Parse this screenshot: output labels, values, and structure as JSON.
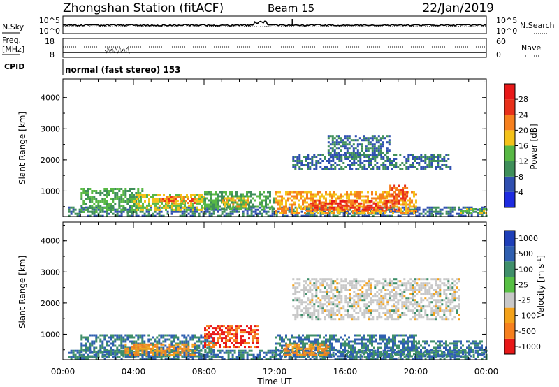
{
  "header": {
    "station": "Zhongshan Station (fitACF)",
    "beam": "Beam 15",
    "date": "22/Jan/2019"
  },
  "top_panel": {
    "left_label": "N.Sky",
    "right_label": "N.Search",
    "left_ticks": [
      "10^5",
      "10^0"
    ],
    "right_ticks": [
      "10^5",
      "10^0"
    ]
  },
  "freq_panel": {
    "left_label_1": "Freq.",
    "left_label_2": "[MHz]",
    "left_ticks": [
      "18",
      "8"
    ],
    "right_ticks": [
      "60",
      "0"
    ],
    "right_label": "Nave"
  },
  "cpid": {
    "label": "CPID",
    "text": "normal (fast stereo) 153"
  },
  "x_axis": {
    "label": "Time UT",
    "ticks": [
      "00:00",
      "04:00",
      "08:00",
      "12:00",
      "16:00",
      "20:00",
      "00:00"
    ]
  },
  "power_panel": {
    "ylabel": "Slant Range [km]",
    "yticks": [
      "4000",
      "3000",
      "2000",
      "1000"
    ],
    "colorbar_label": "Power [dB]",
    "colorbar_ticks": [
      "28",
      "24",
      "20",
      "16",
      "12",
      "8",
      "4"
    ],
    "colors": [
      "#1e2be0",
      "#2f4fb0",
      "#3f8f5a",
      "#58b845",
      "#f4c21a",
      "#f6801e",
      "#e8301a",
      "#e81818"
    ]
  },
  "velocity_panel": {
    "ylabel": "Slant Range [km]",
    "yticks": [
      "4000",
      "3000",
      "2000",
      "1000"
    ],
    "colorbar_label": "Velocity [m s^-1]",
    "colorbar_ticks": [
      "1000",
      "500",
      "100",
      "25",
      "-25",
      "-100",
      "-500",
      "-1000"
    ],
    "colors": [
      "#1e3fb8",
      "#2f5fb0",
      "#3f8f6a",
      "#58c045",
      "#c8c8c8",
      "#f4a21a",
      "#f6801e",
      "#e81818"
    ]
  },
  "chart_data": [
    {
      "type": "heatmap",
      "title": "Power",
      "xlabel": "Time UT",
      "ylabel": "Slant Range [km]",
      "xlim": [
        0,
        24
      ],
      "ylim": [
        180,
        4600
      ],
      "zlabel": "Power [dB]",
      "zlim": [
        0,
        32
      ],
      "regions": [
        {
          "t0": 0.3,
          "t1": 24.0,
          "r0": 220,
          "r1": 500,
          "value": 8
        },
        {
          "t0": 1.0,
          "t1": 4.5,
          "r0": 300,
          "r1": 1100,
          "value": 12
        },
        {
          "t0": 4.0,
          "t1": 8.0,
          "r0": 400,
          "r1": 900,
          "value": 16
        },
        {
          "t0": 5.5,
          "t1": 7.5,
          "r0": 600,
          "r1": 850,
          "value": 22
        },
        {
          "t0": 8.0,
          "t1": 12.0,
          "r0": 400,
          "r1": 1000,
          "value": 12
        },
        {
          "t0": 9.0,
          "t1": 10.5,
          "r0": 500,
          "r1": 800,
          "value": 18
        },
        {
          "t0": 12.0,
          "t1": 20.0,
          "r0": 300,
          "r1": 1000,
          "value": 20
        },
        {
          "t0": 14.0,
          "t1": 19.0,
          "r0": 400,
          "r1": 700,
          "value": 26
        },
        {
          "t0": 15.0,
          "t1": 18.5,
          "r0": 2100,
          "r1": 2800,
          "value": 8
        },
        {
          "t0": 13.0,
          "t1": 22.0,
          "r0": 1700,
          "r1": 2200,
          "value": 8
        },
        {
          "t0": 18.5,
          "t1": 19.5,
          "r0": 600,
          "r1": 1200,
          "value": 24
        },
        {
          "t0": 22.5,
          "t1": 24.0,
          "r0": 250,
          "r1": 450,
          "value": 14
        }
      ]
    },
    {
      "type": "heatmap",
      "title": "Velocity",
      "xlabel": "Time UT",
      "ylabel": "Slant Range [km]",
      "xlim": [
        0,
        24
      ],
      "ylim": [
        180,
        4600
      ],
      "zlabel": "Velocity [m s^-1]",
      "zlim": [
        -1000,
        1000
      ],
      "regions": [
        {
          "t0": 0.3,
          "t1": 24.0,
          "r0": 220,
          "r1": 500,
          "value": 100
        },
        {
          "t0": 1.0,
          "t1": 8.5,
          "r0": 300,
          "r1": 1000,
          "value": 100
        },
        {
          "t0": 3.5,
          "t1": 7.5,
          "r0": 350,
          "r1": 700,
          "value": -100
        },
        {
          "t0": 8.0,
          "t1": 11.0,
          "r0": 600,
          "r1": 1300,
          "value": -500
        },
        {
          "t0": 12.0,
          "t1": 20.0,
          "r0": 300,
          "r1": 1000,
          "value": 100
        },
        {
          "t0": 12.5,
          "t1": 15.0,
          "r0": 300,
          "r1": 700,
          "value": -100
        },
        {
          "t0": 13.0,
          "t1": 22.5,
          "r0": 1500,
          "r1": 2800,
          "value": 0
        },
        {
          "t0": 20.0,
          "t1": 24.0,
          "r0": 300,
          "r1": 800,
          "value": 100
        }
      ]
    }
  ]
}
